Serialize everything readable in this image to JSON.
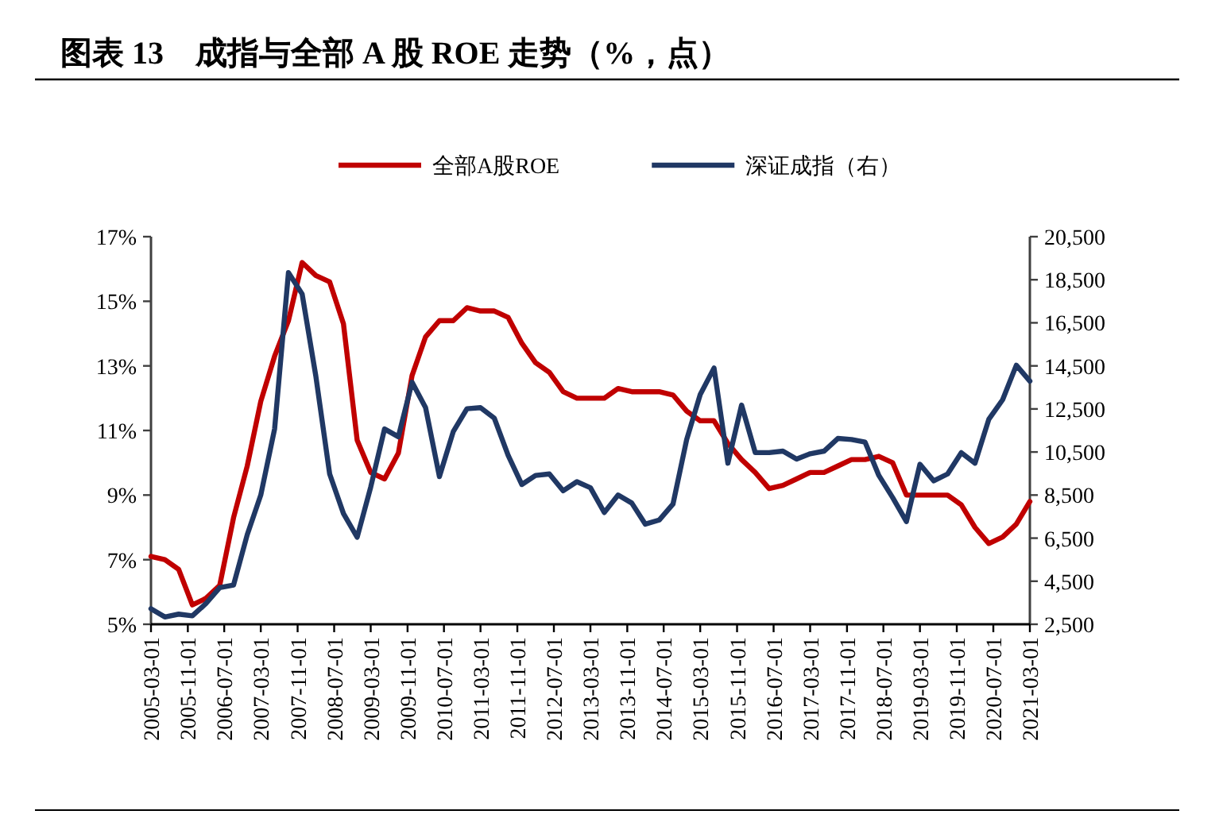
{
  "chart_data": {
    "type": "line",
    "title": "图表 13　成指与全部 A 股 ROE 走势（%，点）",
    "x": [
      "2005-03",
      "2005-06",
      "2005-09",
      "2005-12",
      "2006-03",
      "2006-06",
      "2006-09",
      "2006-12",
      "2007-03",
      "2007-06",
      "2007-09",
      "2007-12",
      "2008-03",
      "2008-06",
      "2008-09",
      "2008-12",
      "2009-03",
      "2009-06",
      "2009-09",
      "2009-12",
      "2010-03",
      "2010-06",
      "2010-09",
      "2010-12",
      "2011-03",
      "2011-06",
      "2011-09",
      "2011-12",
      "2012-03",
      "2012-06",
      "2012-09",
      "2012-12",
      "2013-03",
      "2013-06",
      "2013-09",
      "2013-12",
      "2014-03",
      "2014-06",
      "2014-09",
      "2014-12",
      "2015-03",
      "2015-06",
      "2015-09",
      "2015-12",
      "2016-03",
      "2016-06",
      "2016-09",
      "2016-12",
      "2017-03",
      "2017-06",
      "2017-09",
      "2017-12",
      "2018-03",
      "2018-06",
      "2018-09",
      "2018-12",
      "2019-03",
      "2019-06",
      "2019-09",
      "2019-12",
      "2020-03",
      "2020-06",
      "2020-09",
      "2020-12",
      "2021-03"
    ],
    "series": [
      {
        "name": "全部A股ROE",
        "color": "#c00000",
        "values": [
          7.1,
          7.0,
          6.7,
          5.6,
          5.8,
          6.2,
          8.3,
          9.9,
          11.9,
          13.3,
          14.4,
          16.2,
          15.8,
          15.6,
          14.3,
          10.7,
          9.7,
          9.5,
          10.3,
          12.7,
          13.9,
          14.4,
          14.4,
          14.8,
          14.7,
          14.7,
          14.5,
          13.7,
          13.1,
          12.8,
          12.2,
          12.0,
          12.0,
          12.0,
          12.3,
          12.2,
          12.2,
          12.2,
          12.1,
          11.6,
          11.3,
          11.3,
          10.6,
          10.1,
          9.7,
          9.2,
          9.3,
          9.5,
          9.7,
          9.7,
          9.9,
          10.1,
          10.1,
          10.2,
          10.0,
          9.0,
          9.0,
          9.0,
          9.0,
          8.7,
          8.0,
          7.5,
          7.7,
          8.1,
          8.8
        ]
      },
      {
        "name": "深证成指（右）",
        "color": "#203864",
        "axis": "y2",
        "values": [
          3220,
          2840,
          2970,
          2890,
          3460,
          4200,
          4320,
          6660,
          8500,
          11570,
          18830,
          17840,
          14030,
          9480,
          7640,
          6540,
          8870,
          11570,
          11210,
          13740,
          12560,
          9360,
          11450,
          12510,
          12560,
          12070,
          10340,
          8990,
          9410,
          9480,
          8700,
          9120,
          8840,
          7690,
          8500,
          8130,
          7150,
          7340,
          8080,
          11080,
          13170,
          14400,
          9980,
          12680,
          10470,
          10470,
          10540,
          10170,
          10420,
          10540,
          11130,
          11080,
          10960,
          9410,
          8380,
          7270,
          9930,
          9160,
          9480,
          10470,
          9980,
          12020,
          12930,
          14530,
          13790
        ]
      }
    ],
    "xlim": [
      "2005-03-01",
      "2021-03-01"
    ],
    "xticks": [
      {
        "value": "2005-03-01",
        "label": "2005-03-01"
      },
      {
        "value": "2005-11-01",
        "label": "2005-11-01"
      },
      {
        "value": "2006-07-01",
        "label": "2006-07-01"
      },
      {
        "value": "2007-03-01",
        "label": "2007-03-01"
      },
      {
        "value": "2007-11-01",
        "label": "2007-11-01"
      },
      {
        "value": "2008-07-01",
        "label": "2008-07-01"
      },
      {
        "value": "2009-03-01",
        "label": "2009-03-01"
      },
      {
        "value": "2009-11-01",
        "label": "2009-11-01"
      },
      {
        "value": "2010-07-01",
        "label": "2010-07-01"
      },
      {
        "value": "2011-03-01",
        "label": "2011-03-01"
      },
      {
        "value": "2011-11-01",
        "label": "2011-11-01"
      },
      {
        "value": "2012-07-01",
        "label": "2012-07-01"
      },
      {
        "value": "2013-03-01",
        "label": "2013-03-01"
      },
      {
        "value": "2013-11-01",
        "label": "2013-11-01"
      },
      {
        "value": "2014-07-01",
        "label": "2014-07-01"
      },
      {
        "value": "2015-03-01",
        "label": "2015-03-01"
      },
      {
        "value": "2015-11-01",
        "label": "2015-11-01"
      },
      {
        "value": "2016-07-01",
        "label": "2016-07-01"
      },
      {
        "value": "2017-03-01",
        "label": "2017-03-01"
      },
      {
        "value": "2017-11-01",
        "label": "2017-11-01"
      },
      {
        "value": "2018-07-01",
        "label": "2018-07-01"
      },
      {
        "value": "2019-03-01",
        "label": "2019-03-01"
      },
      {
        "value": "2019-11-01",
        "label": "2019-11-01"
      },
      {
        "value": "2020-07-01",
        "label": "2020-07-01"
      },
      {
        "value": "2021-03-01",
        "label": "2021-03-01"
      }
    ],
    "ylim": [
      5,
      17
    ],
    "yticks": [
      {
        "value": 5,
        "label": "5%"
      },
      {
        "value": 7,
        "label": "7%"
      },
      {
        "value": 9,
        "label": "9%"
      },
      {
        "value": 11,
        "label": "11%"
      },
      {
        "value": 13,
        "label": "13%"
      },
      {
        "value": 15,
        "label": "15%"
      },
      {
        "value": 17,
        "label": "17%"
      }
    ],
    "y2lim": [
      2500,
      20500
    ],
    "y2ticks": [
      {
        "value": 2500,
        "label": "2,500"
      },
      {
        "value": 4500,
        "label": "4,500"
      },
      {
        "value": 6500,
        "label": "6,500"
      },
      {
        "value": 8500,
        "label": "8,500"
      },
      {
        "value": 10500,
        "label": "10,500"
      },
      {
        "value": 12500,
        "label": "12,500"
      },
      {
        "value": 14500,
        "label": "14,500"
      },
      {
        "value": 16500,
        "label": "16,500"
      },
      {
        "value": 18500,
        "label": "18,500"
      },
      {
        "value": 20500,
        "label": "20,500"
      }
    ],
    "legend": "top",
    "grid": false,
    "marker": "none",
    "line_style": "solid"
  }
}
